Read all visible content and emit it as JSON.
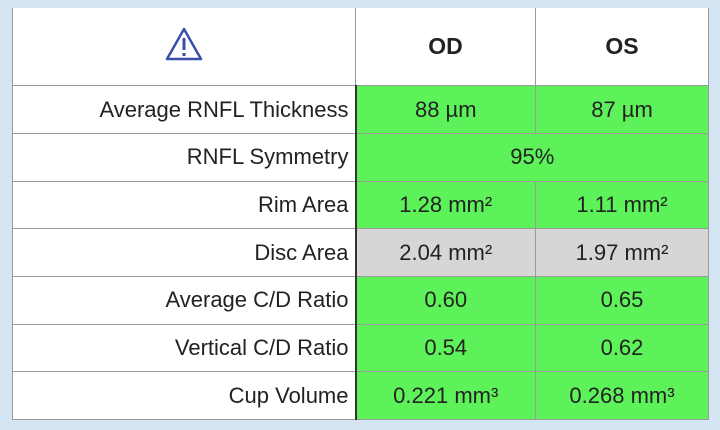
{
  "table": {
    "header": [
      "OD",
      "OS"
    ],
    "rows": [
      {
        "label": "Average RNFL Thickness",
        "od": "88 µm",
        "os": "87 µm"
      },
      {
        "label": "RNFL Symmetry",
        "both": "95%"
      },
      {
        "label": "Rim Area",
        "od": "1.28 mm²",
        "os": "1.11 mm²"
      },
      {
        "label": "Disc Area",
        "od": "2.04 mm²",
        "os": "1.97 mm²"
      },
      {
        "label": "Average C/D Ratio",
        "od": "0.60",
        "os": "0.65"
      },
      {
        "label": "Vertical C/D Ratio",
        "od": "0.54",
        "os": "0.62"
      },
      {
        "label": "Cup Volume",
        "od": "0.221 mm³",
        "os": "0.268 mm³"
      }
    ]
  }
}
